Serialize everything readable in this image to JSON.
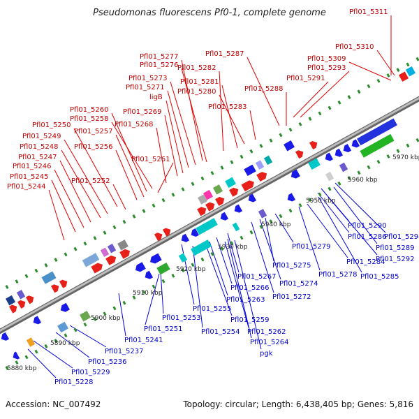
{
  "title": "Pseudomonas fluorescens Pf0-1, complete genome",
  "footer": {
    "accession": "Accession: NC_007492",
    "summary": "Topology: circular; Length: 6,438,405 bp; Genes: 5,816"
  },
  "ticks": [
    "5880 kbp",
    "5890 kbp",
    "5900 kbp",
    "5910 kbp",
    "5920 kbp",
    "5930 kbp",
    "5940 kbp",
    "5950 kbp",
    "5960 kbp",
    "5970 kbp"
  ],
  "top_labels": [
    "Pfl01_5311",
    "Pfl01_5310",
    "Pfl01_5309",
    "Pfl01_5287",
    "Pfl01_5293",
    "Pfl01_5291",
    "Pfl01_5288",
    "Pfl01_5277",
    "Pfl01_5276",
    "Pfl01_5282",
    "Pfl01_5273",
    "Pfl01_5281",
    "Pfl01_5271",
    "Pfl01_5280",
    "ligB",
    "Pfl01_5283",
    "Pfl01_5260",
    "Pfl01_5269",
    "Pfl01_5258",
    "Pfl01_5268",
    "Pfl01_5250",
    "Pfl01_5257",
    "Pfl01_5249",
    "Pfl01_5256",
    "Pfl01_5248",
    "Pfl01_5261",
    "Pfl01_5247",
    "Pfl01_5246",
    "Pfl01_5252",
    "Pfl01_5245",
    "Pfl01_5244"
  ],
  "bottom_labels": [
    "Pfl01_5290",
    "Pfl01_5294",
    "Pfl01_5286",
    "Pfl01_5289",
    "Pfl01_5279",
    "Pfl01_5292",
    "Pfl01_5275",
    "Pfl01_5284",
    "Pfl01_5267",
    "Pfl01_5278",
    "Pfl01_5285",
    "Pfl01_5266",
    "Pfl01_5274",
    "Pfl01_5263",
    "Pfl01_5272",
    "Pfl01_5255",
    "Pfl01_5253",
    "Pfl01_5259",
    "Pfl01_5251",
    "Pfl01_5254",
    "Pfl01_5262",
    "Pfl01_5241",
    "Pfl01_5264",
    "Pfl01_5237",
    "pgk",
    "Pfl01_5236",
    "Pfl01_5229",
    "Pfl01_5228"
  ],
  "colors": {
    "forward_strand": "#e8201a",
    "reverse_strand": "#1a1ae8",
    "backbone": "#8c8c8c",
    "gc_dots": "#2e8b2e"
  }
}
